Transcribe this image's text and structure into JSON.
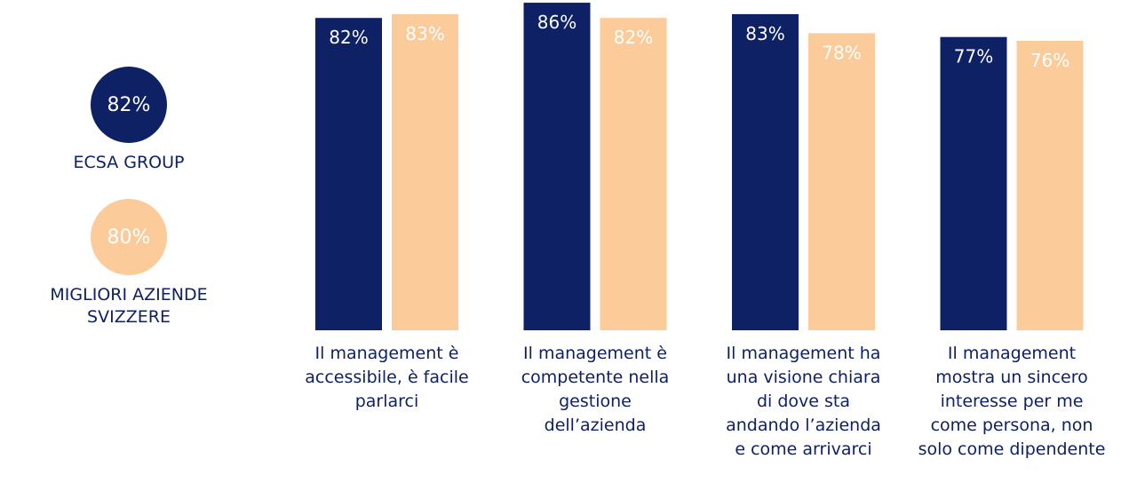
{
  "legend": [
    {
      "value_label": "82%",
      "name": "ECSA GROUP",
      "color": "#0f2165"
    },
    {
      "value_label": "80%",
      "name": "MIGLIORI AZIENDE\nSVIZZERE",
      "color": "#fbcb99"
    }
  ],
  "chart_data": {
    "type": "bar",
    "categories": [
      "Il management è\naccessibile, è facile\nparlarci",
      "Il management  è\ncompetente nella\ngestione\ndell’azienda",
      "Il management ha\nuna visione chiara\ndi dove sta\nandando l’azienda\ne come arrivarci",
      "Il management\nmostra un sincero\ninteresse per me\ncome persona, non\nsolo come dipendente"
    ],
    "series": [
      {
        "name": "ECSA GROUP",
        "color": "#0f2165",
        "values": [
          82,
          86,
          83,
          77
        ],
        "labels": [
          "82%",
          "86%",
          "83%",
          "77%"
        ]
      },
      {
        "name": "MIGLIORI AZIENDE SVIZZERE",
        "color": "#fbcb99",
        "values": [
          83,
          82,
          78,
          76
        ],
        "labels": [
          "83%",
          "82%",
          "78%",
          "76%"
        ]
      }
    ],
    "ylim": [
      0,
      100
    ],
    "grid": false,
    "legend_position": "left"
  }
}
